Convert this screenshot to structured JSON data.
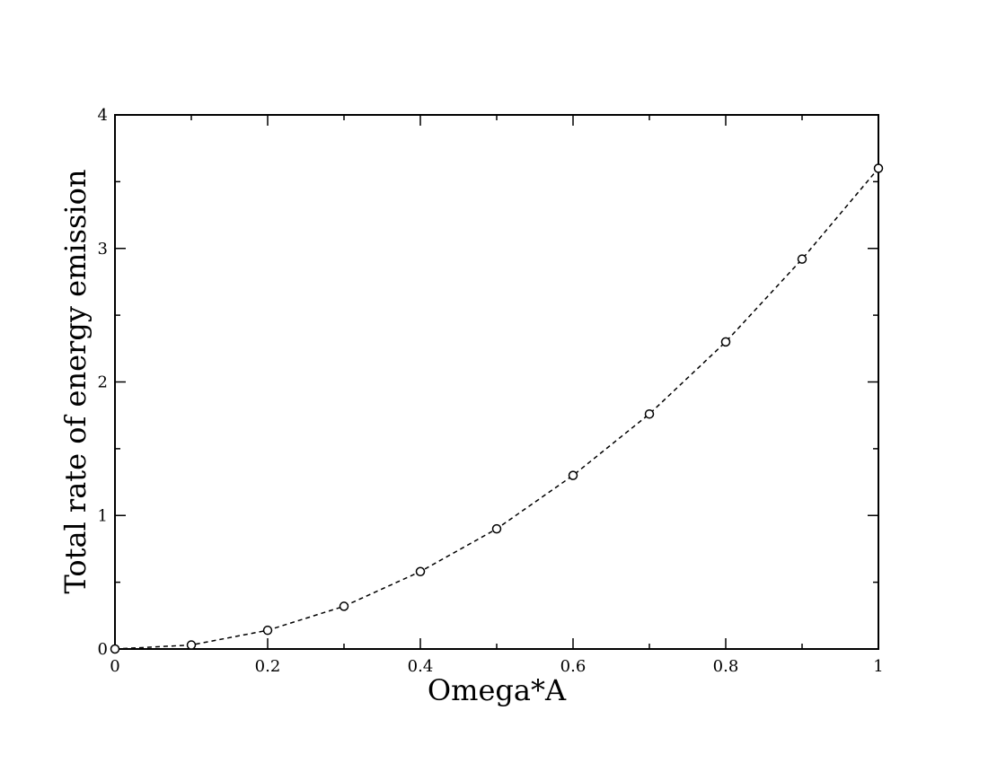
{
  "chart_data": {
    "type": "line",
    "title": "",
    "xlabel": "Omega*A",
    "ylabel": "Total rate of energy emission",
    "xlim": [
      0,
      1
    ],
    "ylim": [
      0,
      4
    ],
    "x_ticks": [
      0,
      0.2,
      0.4,
      0.6,
      0.8,
      1
    ],
    "x_tick_labels": [
      "0",
      "0.2",
      "0.4",
      "0.6",
      "0.8",
      "1"
    ],
    "y_ticks": [
      0,
      1,
      2,
      3,
      4
    ],
    "y_tick_labels": [
      "0",
      "1",
      "2",
      "3",
      "4"
    ],
    "grid": false,
    "legend": "none",
    "line_style": "dashed",
    "marker": "open-circle",
    "colors": {
      "line": "#000000",
      "axes": "#000000",
      "background": "#ffffff"
    },
    "series": [
      {
        "x": [
          0,
          0.1,
          0.2,
          0.3,
          0.4,
          0.5,
          0.6,
          0.7,
          0.8,
          0.9,
          1.0
        ],
        "y": [
          0.0,
          0.03,
          0.14,
          0.32,
          0.58,
          0.9,
          1.3,
          1.76,
          2.3,
          2.92,
          3.6
        ]
      }
    ]
  }
}
